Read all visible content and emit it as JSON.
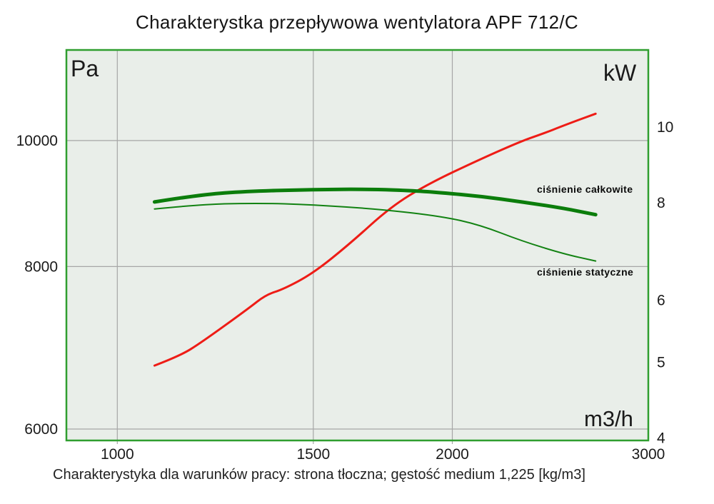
{
  "title": "Charakterystka przepływowa wentylatora APF 712/C",
  "caption": "Charakterystyka dla warunków pracy: strona tłoczna; gęstość medium 1,225 [kg/m3]",
  "chart_data": {
    "type": "line",
    "title": "Charakterystka przepływowa wentylatora APF 712/C",
    "xlabel": "m3/h",
    "ylabel_left": "Pa",
    "ylabel_right": "kW",
    "x_scale": "log",
    "x_range": [
      900,
      3000
    ],
    "x_ticks": [
      1000,
      1500,
      2000,
      3000
    ],
    "y_left_scale": "log",
    "y_left_range": [
      5880,
      11740
    ],
    "y_left_ticks": [
      10000,
      8000,
      6000
    ],
    "y_right_scale": "log",
    "y_right_range": [
      3.97,
      12.55
    ],
    "y_right_ticks": [
      10,
      8,
      6,
      5,
      4
    ],
    "grid": true,
    "legend": "inline-annotations",
    "series": [
      {
        "name": "ciśnienie całkowite",
        "id": "total-pressure",
        "axis": "left",
        "unit": "Pa",
        "color": "#0b7d0b",
        "width": 5,
        "points": [
          [
            1080,
            8970
          ],
          [
            1190,
            9090
          ],
          [
            1310,
            9140
          ],
          [
            1500,
            9170
          ],
          [
            1690,
            9175
          ],
          [
            1850,
            9150
          ],
          [
            1950,
            9120
          ],
          [
            2120,
            9060
          ],
          [
            2310,
            8970
          ],
          [
            2520,
            8870
          ],
          [
            2690,
            8770
          ]
        ]
      },
      {
        "name": "ciśnienie statyczne",
        "id": "static-pressure",
        "axis": "left",
        "unit": "Pa",
        "color": "#128212",
        "width": 2,
        "points": [
          [
            1080,
            8860
          ],
          [
            1190,
            8930
          ],
          [
            1310,
            8950
          ],
          [
            1440,
            8940
          ],
          [
            1690,
            8870
          ],
          [
            1950,
            8750
          ],
          [
            2120,
            8610
          ],
          [
            2310,
            8370
          ],
          [
            2520,
            8180
          ],
          [
            2690,
            8080
          ]
        ]
      },
      {
        "name": "",
        "id": "power",
        "axis": "right",
        "unit": "kW",
        "color": "#ee1c16",
        "width": 3,
        "points": [
          [
            1080,
            4.95
          ],
          [
            1140,
            5.1
          ],
          [
            1190,
            5.3
          ],
          [
            1310,
            5.85
          ],
          [
            1360,
            6.1
          ],
          [
            1410,
            6.2
          ],
          [
            1500,
            6.5
          ],
          [
            1620,
            7.1
          ],
          [
            1760,
            7.9
          ],
          [
            1900,
            8.45
          ],
          [
            2120,
            9.1
          ],
          [
            2310,
            9.6
          ],
          [
            2410,
            9.8
          ],
          [
            2520,
            10.05
          ],
          [
            2690,
            10.4
          ]
        ]
      }
    ],
    "style": {
      "plot_bg": "#e9eee9",
      "border": "#2f9e2f",
      "grid": "#a6a6a6",
      "text": "#1a1a1a"
    }
  }
}
